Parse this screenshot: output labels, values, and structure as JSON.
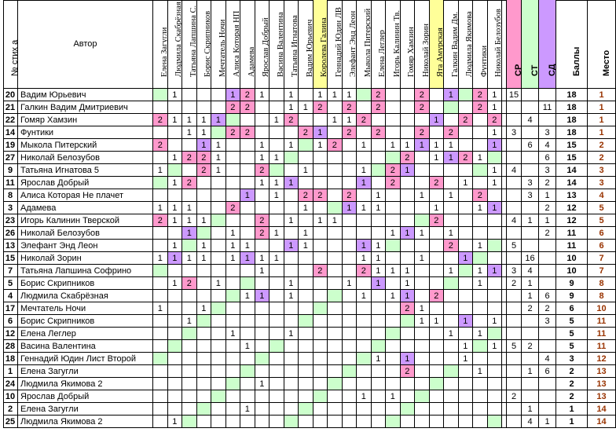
{
  "header": {
    "num_label": "№ стих а",
    "author_label": "Автор",
    "judges": [
      "Елена Загугли",
      "Людмила Скабрёзная",
      "Татьяна Лапшина С.",
      "Борис Скрипников",
      "Мечтатель Ночи",
      "Алиса Которая НП",
      "Адамева",
      "Ярослав Добрый",
      "Васина Валентина",
      "Татьяна Игнатова",
      "Вадим Юрьевич",
      "Королева Галина",
      "Геннадий Юдин ЛВ",
      "Элефант Энд Леон",
      "Мыкола Питерский",
      "Елена Леглер",
      "Игорь Калинин Тв.",
      "Гомяр Хамзин",
      "Николай Зорин",
      "Ята Амурская",
      "Галкин Вадим Дм.",
      "Людмила Якимова",
      "Фунтики",
      "Николай Белозубов"
    ],
    "extra_labels": [
      "СР",
      "СТ",
      "СД",
      "Баллы",
      "Место"
    ]
  },
  "colors": {
    "pink": "#ff99cc",
    "green": "#ccffcc",
    "purple": "#cc99ff",
    "yellow": "#ffff99"
  },
  "rows": [
    {
      "num": "20",
      "author": "Вадим Юрьевич",
      "scores": [
        "",
        "1",
        "",
        "",
        "",
        "1",
        "2",
        "1",
        "",
        "1",
        "",
        "1",
        "1",
        "1",
        "",
        "2",
        "",
        "",
        "2",
        "",
        "1",
        "",
        "2",
        "1"
      ],
      "sr": "15",
      "st": "",
      "sd": "",
      "points": "18",
      "place": "1"
    },
    {
      "num": "21",
      "author": "Галкин Вадим Дмитриевич",
      "scores": [
        "",
        "",
        "",
        "",
        "",
        "2",
        "2",
        "",
        "",
        "1",
        "1",
        "2",
        "",
        "2",
        "",
        "2",
        "",
        "",
        "2",
        "",
        "",
        "",
        "2",
        "1"
      ],
      "sr": "",
      "st": "",
      "sd": "11",
      "points": "18",
      "place": "1"
    },
    {
      "num": "22",
      "author": "Гомяр Хамзин",
      "scores": [
        "2",
        "1",
        "1",
        "1",
        "1",
        "",
        "",
        "",
        "1",
        "2",
        "",
        "",
        "1",
        "1",
        "2",
        "",
        "",
        "",
        "",
        "1",
        "",
        "2",
        "",
        "2"
      ],
      "sr": "",
      "st": "4",
      "sd": "",
      "points": "18",
      "place": "1"
    },
    {
      "num": "14",
      "author": "Фунтики",
      "scores": [
        "",
        "",
        "1",
        "1",
        "",
        "2",
        "2",
        "",
        "",
        "",
        "2",
        "1",
        "",
        "2",
        "",
        "2",
        "",
        "",
        "2",
        "",
        "2",
        "",
        "",
        "1"
      ],
      "sr": "3",
      "st": "",
      "sd": "3",
      "points": "18",
      "place": "1"
    },
    {
      "num": "19",
      "author": "Мыкола Питерский",
      "scores": [
        "2",
        "",
        "",
        "1",
        "1",
        "",
        "",
        "1",
        "",
        "1",
        "",
        "1",
        "2",
        "",
        "1",
        "",
        "1",
        "1",
        "1",
        "1",
        "1",
        "",
        "",
        "1"
      ],
      "sr": "",
      "st": "6",
      "sd": "4",
      "points": "15",
      "place": "2"
    },
    {
      "num": "27",
      "author": "Николай Белозубов",
      "scores": [
        "",
        "1",
        "2",
        "2",
        "1",
        "",
        "",
        "1",
        "1",
        "",
        "",
        "",
        "",
        "",
        "",
        "",
        "",
        "2",
        "",
        "1",
        "1",
        "2",
        "1",
        ""
      ],
      "sr": "",
      "st": "",
      "sd": "6",
      "points": "15",
      "place": "2"
    },
    {
      "num": "9",
      "author": "Татьяна Игнатова 5",
      "scores": [
        "1",
        "",
        "",
        "2",
        "1",
        "",
        "",
        "2",
        "",
        "",
        "1",
        "",
        "",
        "",
        "1",
        "",
        "2",
        "1",
        "",
        "",
        "",
        "",
        "",
        "1"
      ],
      "sr": "4",
      "st": "",
      "sd": "3",
      "points": "14",
      "place": "3"
    },
    {
      "num": "11",
      "author": "Ярослав Добрый",
      "scores": [
        "",
        "1",
        "2",
        "",
        "",
        "",
        "",
        "1",
        "1",
        "1",
        "",
        "",
        "",
        "",
        "1",
        "",
        "2",
        "",
        "",
        "2",
        "",
        "1",
        "",
        "1"
      ],
      "sr": "",
      "st": "3",
      "sd": "2",
      "points": "14",
      "place": "3"
    },
    {
      "num": "8",
      "author": "Алиса Которая Не плачет",
      "scores": [
        "",
        "",
        "",
        "",
        "",
        "",
        "1",
        "",
        "1",
        "",
        "2",
        "2",
        "",
        "2",
        "",
        "1",
        "",
        "",
        "1",
        "",
        "1",
        "",
        "2",
        ""
      ],
      "sr": "",
      "st": "3",
      "sd": "1",
      "points": "13",
      "place": "4"
    },
    {
      "num": "3",
      "author": "Адамева",
      "scores": [
        "1",
        "1",
        "1",
        "",
        "",
        "2",
        "",
        "",
        "",
        "",
        "1",
        "",
        "",
        "1",
        "1",
        "1",
        "",
        "",
        "",
        "1",
        "",
        "",
        "1",
        "1"
      ],
      "sr": "",
      "st": "",
      "sd": "2",
      "points": "12",
      "place": "5"
    },
    {
      "num": "23",
      "author": "Игорь Калинин Тверской",
      "scores": [
        "2",
        "1",
        "1",
        "1",
        "",
        "",
        "",
        "2",
        "",
        "1",
        "",
        "1",
        "1",
        "",
        "",
        "",
        "",
        "",
        "",
        "2",
        "",
        "",
        "",
        ""
      ],
      "sr": "4",
      "st": "1",
      "sd": "1",
      "points": "12",
      "place": "5"
    },
    {
      "num": "26",
      "author": "Николай Белозубов",
      "scores": [
        "",
        "",
        "1",
        "",
        "",
        "1",
        "",
        "2",
        "1",
        "",
        "1",
        "",
        "",
        "",
        "",
        "",
        "1",
        "1",
        "1",
        "",
        "1",
        "",
        "",
        ""
      ],
      "sr": "",
      "st": "",
      "sd": "2",
      "points": "11",
      "place": "6"
    },
    {
      "num": "13",
      "author": "Элефант Энд Леон",
      "scores": [
        "",
        "1",
        "",
        "1",
        "",
        "1",
        "1",
        "",
        "",
        "1",
        "1",
        "",
        "",
        "",
        "1",
        "1",
        "",
        "",
        "",
        "",
        "2",
        "",
        "1",
        ""
      ],
      "sr": "5",
      "st": "",
      "sd": "",
      "points": "11",
      "place": "6"
    },
    {
      "num": "15",
      "author": "Николай Зорин",
      "scores": [
        "1",
        "1",
        "1",
        "1",
        "",
        "1",
        "1",
        "1",
        "1",
        "",
        "",
        "",
        "",
        "",
        "1",
        "1",
        "",
        "",
        "1",
        "",
        "",
        "1",
        "",
        ""
      ],
      "sr": "",
      "st": "16",
      "sd": "",
      "points": "10",
      "place": "7"
    },
    {
      "num": "7",
      "author": "Татьяна Лапшина Софрино",
      "scores": [
        "",
        "",
        "",
        "",
        "",
        "",
        "",
        "1",
        "",
        "",
        "",
        "2",
        "",
        "",
        "2",
        "1",
        "1",
        "1",
        "",
        "",
        "1",
        "",
        "1",
        "1"
      ],
      "sr": "3",
      "st": "4",
      "sd": "",
      "points": "10",
      "place": "7"
    },
    {
      "num": "5",
      "author": "Борис Скрипников",
      "scores": [
        "",
        "1",
        "2",
        "",
        "1",
        "",
        "",
        "",
        "",
        "1",
        "",
        "",
        "",
        "1",
        "",
        "1",
        "",
        "1",
        "",
        "",
        "",
        "",
        "1",
        ""
      ],
      "sr": "2",
      "st": "1",
      "sd": "",
      "points": "9",
      "place": "8"
    },
    {
      "num": "4",
      "author": "Людмила Скабрёзная",
      "scores": [
        "",
        "",
        "",
        "",
        "",
        "",
        "1",
        "1",
        "",
        "1",
        "",
        "",
        "",
        "",
        "1",
        "",
        "1",
        "1",
        "",
        "2",
        "",
        "",
        "",
        ""
      ],
      "sr": "",
      "st": "1",
      "sd": "6",
      "points": "9",
      "place": "8"
    },
    {
      "num": "17",
      "author": "Мечтатель Ночи",
      "scores": [
        "1",
        "",
        "",
        "1",
        "",
        "",
        "",
        "",
        "",
        "",
        "",
        "",
        "",
        "",
        "",
        "",
        "",
        "2",
        "1",
        "",
        "",
        "",
        "",
        ""
      ],
      "sr": "",
      "st": "2",
      "sd": "2",
      "points": "6",
      "place": "10"
    },
    {
      "num": "6",
      "author": "Борис Скрипников",
      "scores": [
        "",
        "",
        "1",
        "",
        "",
        "",
        "",
        "",
        "",
        "",
        "",
        "",
        "",
        "",
        "",
        "",
        "",
        "",
        "1",
        "1",
        "",
        "1",
        "",
        "1"
      ],
      "sr": "",
      "st": "",
      "sd": "3",
      "points": "5",
      "place": "11"
    },
    {
      "num": "12",
      "author": "Елена Леглер",
      "scores": [
        "",
        "",
        "",
        "",
        "",
        "1",
        "",
        "",
        "",
        "1",
        "",
        "",
        "",
        "",
        "",
        "",
        "",
        "",
        "",
        "",
        "1",
        "",
        "1",
        ""
      ],
      "sr": "",
      "st": "",
      "sd": "",
      "points": "5",
      "place": "11"
    },
    {
      "num": "28",
      "author": "Васина Валентина",
      "scores": [
        "",
        "",
        "",
        "",
        "",
        "",
        "1",
        "",
        "",
        "",
        "",
        "",
        "",
        "",
        "",
        "",
        "",
        "",
        "",
        "",
        "",
        "1",
        "",
        "1"
      ],
      "sr": "5",
      "st": "2",
      "sd": "",
      "points": "5",
      "place": "11"
    },
    {
      "num": "18",
      "author": "Геннадий Юдин Лист Второй",
      "scores": [
        "",
        "",
        "",
        "",
        "",
        "",
        "",
        "",
        "",
        "",
        "",
        "",
        "",
        "",
        "",
        "1",
        "",
        "1",
        "",
        "",
        "",
        "1",
        "",
        ""
      ],
      "sr": "",
      "st": "",
      "sd": "4",
      "points": "3",
      "place": "12"
    },
    {
      "num": "1",
      "author": "Елена Загугли",
      "scores": [
        "",
        "",
        "",
        "",
        "",
        "",
        "",
        "",
        "",
        "",
        "",
        "",
        "",
        "",
        "",
        "",
        "",
        "2",
        "",
        "",
        "",
        "",
        "1",
        ""
      ],
      "sr": "",
      "st": "1",
      "sd": "6",
      "points": "2",
      "place": "13"
    },
    {
      "num": "24",
      "author": "Людмила Якимова 2",
      "scores": [
        "",
        "",
        "",
        "",
        "",
        "",
        "",
        "1",
        "",
        "",
        "",
        "",
        "",
        "",
        "",
        "",
        "",
        "",
        "",
        "",
        "",
        "",
        "",
        ""
      ],
      "sr": "",
      "st": "",
      "sd": "",
      "points": "2",
      "place": "13"
    },
    {
      "num": "10",
      "author": "Ярослав Добрый",
      "scores": [
        "",
        "",
        "",
        "",
        "",
        "",
        "",
        "",
        "",
        "",
        "",
        "",
        "",
        "",
        "1",
        "",
        "1",
        "",
        "",
        "",
        "",
        "",
        "",
        ""
      ],
      "sr": "2",
      "st": "",
      "sd": "",
      "points": "2",
      "place": "13"
    },
    {
      "num": "2",
      "author": "Елена Загугли",
      "scores": [
        "",
        "",
        "",
        "",
        "",
        "",
        "1",
        "",
        "",
        "",
        "",
        "",
        "",
        "",
        "",
        "",
        "",
        "",
        "",
        "",
        "",
        "",
        "",
        ""
      ],
      "sr": "",
      "st": "1",
      "sd": "",
      "points": "1",
      "place": "14"
    },
    {
      "num": "25",
      "author": "Людмила Якимова 2",
      "scores": [
        "",
        "1",
        "",
        "",
        "",
        "",
        "",
        "",
        "",
        "",
        "",
        "",
        "",
        "",
        "",
        "",
        "",
        "",
        "",
        "",
        "",
        "",
        "",
        ""
      ],
      "sr": "",
      "st": "4",
      "sd": "1",
      "points": "1",
      "place": "14"
    }
  ]
}
